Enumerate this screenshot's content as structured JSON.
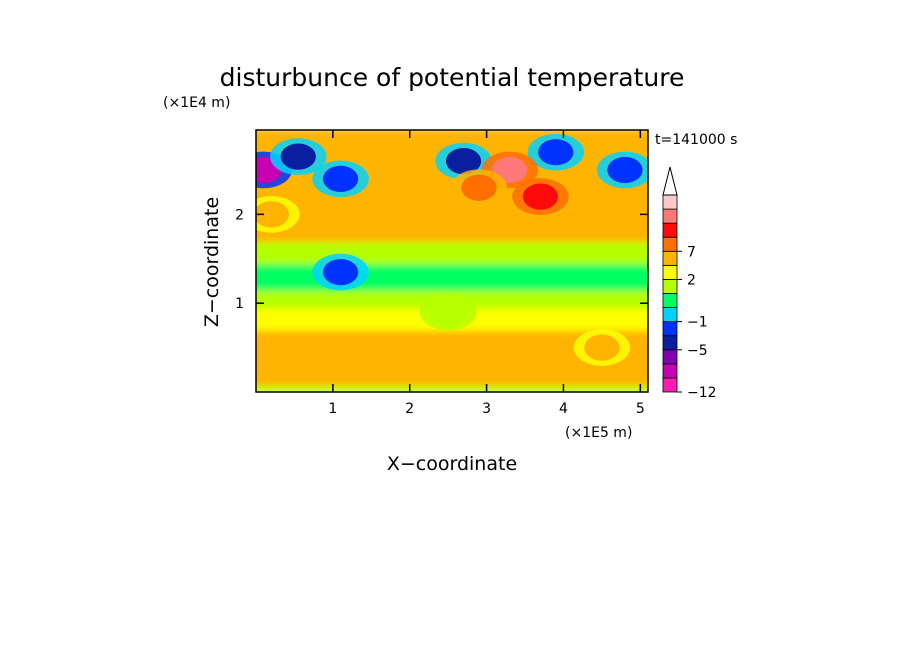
{
  "chart_data": {
    "type": "heatmap",
    "title": "disturbunce of potential temperature",
    "time_label": "t=141000 s",
    "xlabel": "X−coordinate",
    "ylabel": "Z−coordinate",
    "x_unit": "(×1E5 m)",
    "y_unit": "(×1E4 m)",
    "xlim": [
      0,
      5.1
    ],
    "ylim": [
      0,
      2.95
    ],
    "x_ticks": [
      1,
      2,
      3,
      4,
      5
    ],
    "y_ticks": [
      1,
      2
    ],
    "colorbar": {
      "levels": [
        -12,
        -9,
        -7,
        -5,
        -3,
        -1,
        0,
        1,
        2,
        4,
        7,
        9,
        11
      ],
      "colors": [
        "#ff19b4",
        "#c800b4",
        "#8200b4",
        "#0a1ea0",
        "#0032ff",
        "#00d2ff",
        "#00ff64",
        "#b4ff00",
        "#ffff00",
        "#ffb400",
        "#ff6e00",
        "#ff0a0a",
        "#ff7878",
        "#ffc8c8"
      ],
      "tick_labels": [
        "−12",
        "−5",
        "−1",
        "2",
        "7"
      ],
      "tick_values": [
        -12,
        -5,
        -1,
        2,
        7
      ],
      "extend": "max"
    },
    "features": [
      {
        "x": 0.1,
        "z": 2.5,
        "value": -10
      },
      {
        "x": 0.55,
        "z": 2.65,
        "value": -6
      },
      {
        "x": 1.1,
        "z": 2.4,
        "value": -5
      },
      {
        "x": 2.7,
        "z": 2.6,
        "value": -6
      },
      {
        "x": 3.9,
        "z": 2.7,
        "value": -5
      },
      {
        "x": 4.8,
        "z": 2.5,
        "value": -5
      },
      {
        "x": 3.3,
        "z": 2.5,
        "value": 9
      },
      {
        "x": 3.7,
        "z": 2.2,
        "value": 8
      },
      {
        "x": 2.9,
        "z": 2.3,
        "value": 5
      },
      {
        "x": 0.2,
        "z": 2.0,
        "value": 3
      },
      {
        "x": 1.1,
        "z": 1.35,
        "value": -4
      },
      {
        "x": 4.5,
        "z": 0.5,
        "value": 2
      },
      {
        "x": 2.5,
        "z": 0.9,
        "value": 0.5
      }
    ]
  }
}
